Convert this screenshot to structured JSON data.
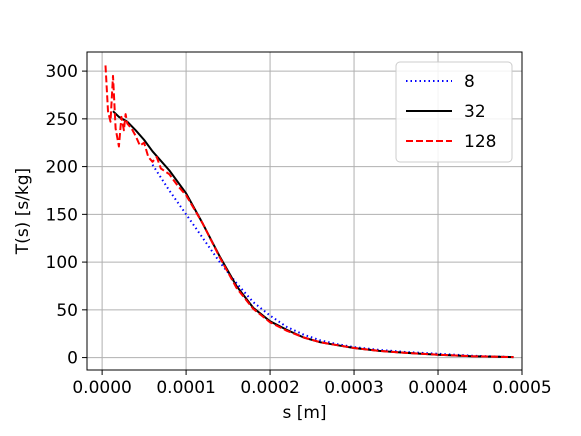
{
  "chart_data": {
    "type": "line",
    "title": "",
    "xlabel": "s [m]",
    "ylabel": "T(s) [s/kg]",
    "xlim": [
      -1.8e-05,
      0.0005
    ],
    "ylim": [
      -13,
      320
    ],
    "x_ticks": [
      0.0,
      0.0001,
      0.0002,
      0.0003,
      0.0004,
      0.0005
    ],
    "x_tick_labels": [
      "0.0000",
      "0.0001",
      "0.0002",
      "0.0003",
      "0.0004",
      "0.0005"
    ],
    "y_ticks": [
      0,
      50,
      100,
      150,
      200,
      250,
      300
    ],
    "y_tick_labels": [
      "0",
      "50",
      "100",
      "150",
      "200",
      "250",
      "300"
    ],
    "grid": true,
    "legend_position": "top-right",
    "series": [
      {
        "name": "8",
        "color": "#0000ff",
        "style": "dotted",
        "x": [
          6e-05,
          8e-05,
          0.0001,
          0.00012,
          0.00014,
          0.00016,
          0.00018,
          0.0002,
          0.00022,
          0.00024,
          0.00026,
          0.00028,
          0.0003,
          0.00033,
          0.00036,
          0.0004,
          0.00044,
          0.00049
        ],
        "y": [
          202,
          175,
          150,
          125,
          100,
          78,
          58,
          44,
          32,
          24,
          18,
          14,
          11,
          8,
          6,
          4,
          2,
          0.5
        ]
      },
      {
        "name": "32",
        "color": "#000000",
        "style": "solid",
        "x": [
          1.3e-05,
          2e-05,
          3e-05,
          4e-05,
          5e-05,
          6e-05,
          8e-05,
          0.0001,
          0.00012,
          0.00014,
          0.00016,
          0.00018,
          0.0002,
          0.00022,
          0.00024,
          0.00026,
          0.00028,
          0.0003,
          0.00033,
          0.00036,
          0.0004,
          0.00044,
          0.00049
        ],
        "y": [
          258,
          252,
          247,
          238,
          228,
          216,
          196,
          172,
          140,
          106,
          75,
          52,
          38,
          29,
          21,
          16,
          13,
          10,
          7,
          5,
          3,
          1.5,
          0.5
        ]
      },
      {
        "name": "128",
        "color": "#ff0000",
        "style": "dashed",
        "x": [
          4e-06,
          7e-06,
          1e-05,
          1.3e-05,
          1.6e-05,
          2e-05,
          2.3e-05,
          2.6e-05,
          2.8e-05,
          3e-05,
          3.5e-05,
          4e-05,
          4.5e-05,
          5e-05,
          5.5e-05,
          6e-05,
          6.5e-05,
          7e-05,
          8e-05,
          9e-05,
          0.0001,
          0.00012,
          0.00014,
          0.00016,
          0.00018,
          0.0002,
          0.00022,
          0.00024,
          0.00026,
          0.00028,
          0.0003,
          0.00033,
          0.00036,
          0.0004,
          0.00044,
          0.00049
        ],
        "y": [
          306,
          258,
          247,
          295,
          240,
          221,
          252,
          238,
          255,
          245,
          240,
          232,
          222,
          225,
          210,
          205,
          210,
          198,
          192,
          180,
          170,
          140,
          105,
          73,
          51,
          37,
          28,
          21,
          16,
          13,
          10,
          7,
          5,
          3,
          1.5,
          0.5
        ]
      }
    ]
  }
}
